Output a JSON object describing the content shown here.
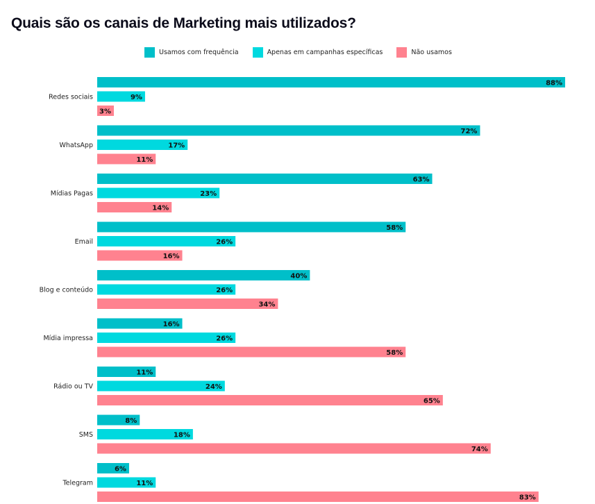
{
  "chart_data": {
    "type": "bar",
    "orientation": "horizontal",
    "title": "Quais são os canais de Marketing mais utilizados?",
    "xlabel": "",
    "ylabel": "",
    "xlim": [
      0,
      88
    ],
    "grid": false,
    "legend_position": "top",
    "categories": [
      "Redes sociais",
      "WhatsApp",
      "Mídias Pagas",
      "Email",
      "Blog e conteúdo",
      "Mídia impressa",
      "Rádio ou TV",
      "SMS",
      "Telegram"
    ],
    "series": [
      {
        "name": "Usamos com frequência",
        "color": "#00bfc9",
        "values": [
          88,
          72,
          63,
          58,
          40,
          16,
          11,
          8,
          6
        ]
      },
      {
        "name": "Apenas em campanhas específicas",
        "color": "#00d9df",
        "values": [
          9,
          17,
          23,
          26,
          26,
          26,
          24,
          18,
          11
        ]
      },
      {
        "name": "Não usamos",
        "color": "#ff828f",
        "values": [
          3,
          11,
          14,
          16,
          34,
          58,
          65,
          74,
          83
        ]
      }
    ],
    "value_suffix": "%"
  }
}
